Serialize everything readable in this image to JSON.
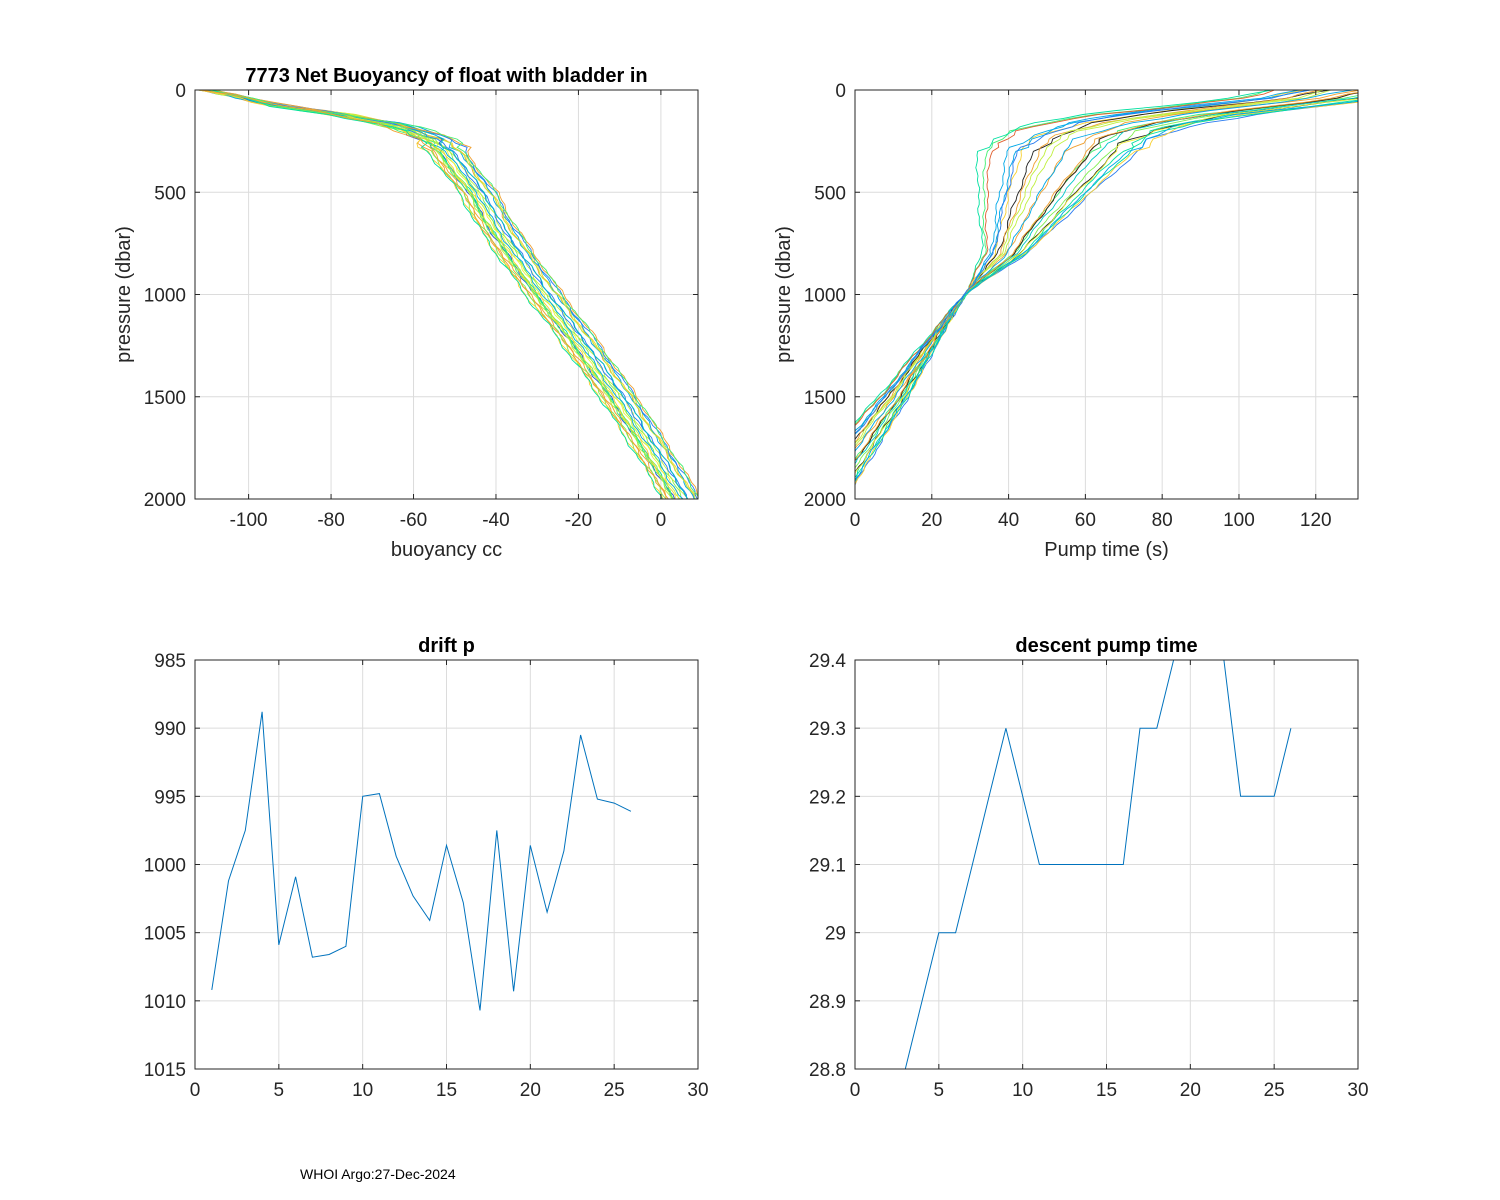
{
  "footer": "WHOI Argo:27-Dec-2024",
  "colors": {
    "axis": "#262626",
    "grid": "#dcdcdc",
    "series_blue": "#0072bd",
    "profile_palette": [
      "#1f4fd8",
      "#2a7bf0",
      "#00a8e8",
      "#00c8c8",
      "#00e0a0",
      "#40f070",
      "#80f050",
      "#c0f040",
      "#f0f040",
      "#f8d030",
      "#f0a030",
      "#e06030",
      "#202020"
    ]
  },
  "chart_data": [
    {
      "id": "buoyancy",
      "type": "line",
      "title": "7773 Net Buoyancy of float with bladder in",
      "xlabel": "buoyancy cc",
      "ylabel": "pressure (dbar)",
      "xlim": [
        -113,
        9
      ],
      "ylim": [
        0,
        2000
      ],
      "y_reversed": true,
      "xticks": [
        -100,
        -80,
        -60,
        -40,
        -20,
        0
      ],
      "xtick_labels": [
        "-100",
        "-80",
        "-60",
        "-40",
        "-20",
        "0"
      ],
      "yticks": [
        0,
        500,
        1000,
        1500,
        2000
      ],
      "ytick_labels": [
        "0",
        "500",
        "1000",
        "1500",
        "2000"
      ],
      "grid": true,
      "profile_count": 26,
      "base_profile": {
        "pressure": [
          0,
          40,
          80,
          120,
          160,
          200,
          250,
          300,
          400,
          500,
          650,
          800,
          1000,
          1200,
          1500,
          1800,
          2000
        ],
        "value": [
          -110,
          -100,
          -90,
          -76,
          -64,
          -56,
          -50,
          -47.5,
          -44,
          -40,
          -36,
          -31,
          -24,
          -16.5,
          -6,
          3.5,
          9.5
        ]
      },
      "profile_shift_range": [
        -9,
        1
      ]
    },
    {
      "id": "pump",
      "type": "line",
      "title": "",
      "xlabel": "Pump time (s)",
      "ylabel": "pressure (dbar)",
      "xlim": [
        0,
        131
      ],
      "ylim": [
        0,
        2000
      ],
      "y_reversed": true,
      "xticks": [
        0,
        20,
        40,
        60,
        80,
        100,
        120
      ],
      "xtick_labels": [
        "0",
        "20",
        "40",
        "60",
        "80",
        "100",
        "120"
      ],
      "yticks": [
        0,
        500,
        1000,
        1500,
        2000
      ],
      "ytick_labels": [
        "0",
        "500",
        "1000",
        "1500",
        "2000"
      ],
      "grid": true,
      "profile_count": 26,
      "pivot": {
        "x": 29,
        "y": 990
      },
      "base_profile": {
        "pressure": [
          0,
          40,
          80,
          120,
          160,
          200,
          250,
          300,
          400,
          500,
          650,
          800,
          990,
          1200,
          1500,
          1750,
          2000
        ],
        "value": [
          128,
          118,
          100,
          82,
          70,
          62,
          56,
          53,
          50,
          47,
          43,
          39,
          29,
          21,
          10,
          0,
          -10
        ]
      },
      "deep_spread": 8,
      "shallow_spread": 22
    },
    {
      "id": "drift",
      "type": "line",
      "title": "drift p",
      "xlabel": "",
      "ylabel": "",
      "xlim": [
        0,
        30
      ],
      "ylim": [
        985,
        1015
      ],
      "y_reversed": true,
      "xticks": [
        0,
        5,
        10,
        15,
        20,
        25,
        30
      ],
      "xtick_labels": [
        "0",
        "5",
        "10",
        "15",
        "20",
        "25",
        "30"
      ],
      "yticks": [
        985,
        990,
        995,
        1000,
        1005,
        1010,
        1015
      ],
      "ytick_labels": [
        "985",
        "990",
        "995",
        "1000",
        "1005",
        "1010",
        "1015"
      ],
      "grid": true,
      "x": [
        1,
        2,
        3,
        4,
        5,
        6,
        7,
        8,
        9,
        10,
        11,
        12,
        13,
        14,
        15,
        16,
        17,
        18,
        19,
        20,
        21,
        22,
        23,
        24,
        25,
        26
      ],
      "y": [
        1009.2,
        1001.2,
        997.5,
        988.8,
        1005.9,
        1000.9,
        1006.8,
        1006.6,
        1006.0,
        995.0,
        994.8,
        999.4,
        1002.3,
        1004.1,
        998.6,
        1002.8,
        1010.7,
        997.5,
        1009.3,
        998.6,
        1003.5,
        999.0,
        990.5,
        995.2,
        995.5,
        996.1
      ]
    },
    {
      "id": "descent",
      "type": "line",
      "title": "descent pump time",
      "xlabel": "",
      "ylabel": "",
      "xlim": [
        0,
        30
      ],
      "ylim": [
        28.8,
        29.4
      ],
      "y_reversed": false,
      "xticks": [
        0,
        5,
        10,
        15,
        20,
        25,
        30
      ],
      "xtick_labels": [
        "0",
        "5",
        "10",
        "15",
        "20",
        "25",
        "30"
      ],
      "yticks": [
        28.8,
        28.9,
        29.0,
        29.1,
        29.2,
        29.3,
        29.4
      ],
      "ytick_labels": [
        "28.8",
        "28.9",
        "29",
        "29.1",
        "29.2",
        "29.3",
        "29.4"
      ],
      "grid": true,
      "x": [
        1,
        2,
        3,
        4,
        5,
        6,
        7,
        8,
        9,
        10,
        11,
        12,
        13,
        14,
        15,
        16,
        17,
        18,
        19,
        20,
        21,
        22,
        23,
        24,
        25,
        26
      ],
      "y": [
        28.8,
        28.8,
        28.8,
        28.9,
        29.0,
        29.0,
        29.1,
        29.2,
        29.3,
        29.2,
        29.1,
        29.1,
        29.1,
        29.1,
        29.1,
        29.1,
        29.3,
        29.3,
        29.4,
        29.4,
        29.4,
        29.4,
        29.2,
        29.2,
        29.2,
        29.3
      ]
    }
  ]
}
